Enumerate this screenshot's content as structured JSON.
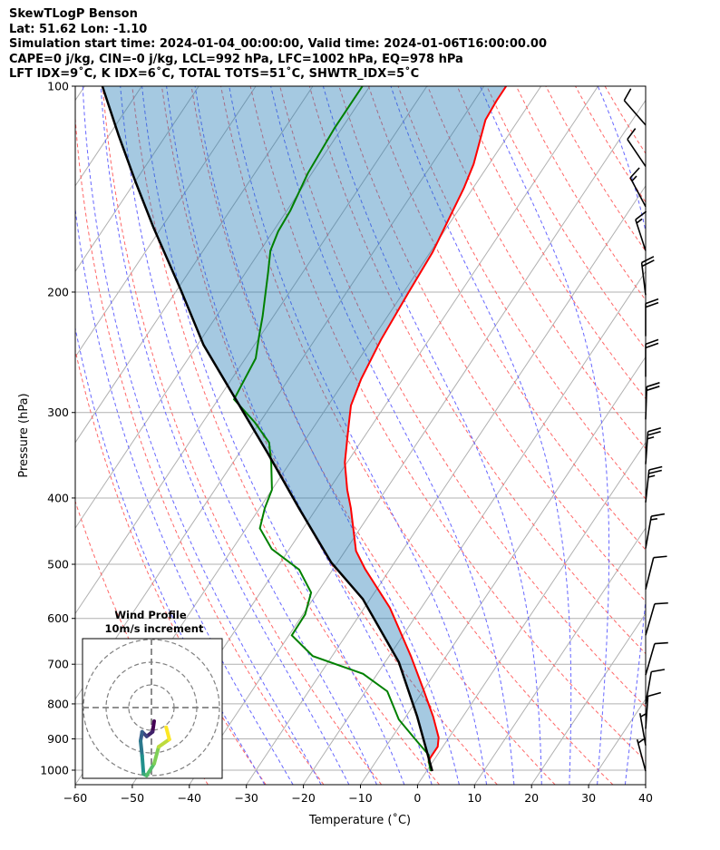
{
  "header": {
    "line1": "SkewTLogP Benson",
    "line2": "Lat: 51.62   Lon: -1.10",
    "line3": "Simulation start time: 2024-01-04_00:00:00, Valid time: 2024-01-06T16:00:00.00",
    "line4": "CAPE=0 j/kg, CIN=-0 j/kg, LCL=992 hPa, LFC=1002 hPa, EQ=978 hPa",
    "line5": "LFT IDX=9˚C, K IDX=6˚C, TOTAL TOTS=51˚C, SHWTR_IDX=5˚C"
  },
  "chart_data": {
    "type": "line",
    "xlabel": "Temperature (˚C)",
    "ylabel": "Pressure (hPa)",
    "xlim": [
      -60,
      40
    ],
    "ylim": [
      1050,
      100
    ],
    "xticks": [
      -60,
      -50,
      -40,
      -30,
      -20,
      -10,
      0,
      10,
      20,
      30,
      40
    ],
    "yticks": [
      100,
      200,
      300,
      400,
      500,
      600,
      700,
      800,
      900,
      1000
    ],
    "grid": true,
    "colors": {
      "temperature": "#ff0000",
      "dewpoint": "#008000",
      "parcel": "#000000",
      "cape_fill": "#1f77b4",
      "isotherm": "#b0b0b0",
      "dry_adiabat": "#ff6666",
      "moist_adiabat": "#6666ff"
    },
    "temperature": [
      [
        1003,
        1.0
      ],
      [
        973,
        -0.7
      ],
      [
        958,
        -0.9
      ],
      [
        924,
        -0.9
      ],
      [
        896,
        -1.8
      ],
      [
        835,
        -5.2
      ],
      [
        762,
        -10.1
      ],
      [
        681,
        -16.2
      ],
      [
        579,
        -25.5
      ],
      [
        508,
        -34.4
      ],
      [
        478,
        -38.1
      ],
      [
        414,
        -44.0
      ],
      [
        389,
        -46.8
      ],
      [
        355,
        -50.4
      ],
      [
        314,
        -54.0
      ],
      [
        293,
        -56.0
      ],
      [
        268,
        -57.3
      ],
      [
        235,
        -58.4
      ],
      [
        201,
        -59.1
      ],
      [
        175,
        -59.6
      ],
      [
        141,
        -61.6
      ],
      [
        130,
        -62.7
      ],
      [
        112,
        -65.8
      ],
      [
        105,
        -66.1
      ],
      [
        100,
        -66.1
      ]
    ],
    "dewpoint": [
      [
        1003,
        0.7
      ],
      [
        967,
        -0.9
      ],
      [
        950,
        -1.5
      ],
      [
        907,
        -5.2
      ],
      [
        843,
        -10.9
      ],
      [
        767,
        -16.2
      ],
      [
        723,
        -22.5
      ],
      [
        681,
        -33.4
      ],
      [
        635,
        -39.5
      ],
      [
        592,
        -39.6
      ],
      [
        550,
        -41.1
      ],
      [
        509,
        -45.9
      ],
      [
        475,
        -53.1
      ],
      [
        443,
        -57.6
      ],
      [
        414,
        -59.1
      ],
      [
        389,
        -60.0
      ],
      [
        355,
        -63.3
      ],
      [
        332,
        -66.0
      ],
      [
        310,
        -70.9
      ],
      [
        287,
        -77.2
      ],
      [
        268,
        -77.7
      ],
      [
        250,
        -78.2
      ],
      [
        232,
        -80.2
      ],
      [
        217,
        -81.9
      ],
      [
        187,
        -86.1
      ],
      [
        174,
        -88.2
      ],
      [
        163,
        -89.1
      ],
      [
        152,
        -89.4
      ],
      [
        134,
        -90.7
      ],
      [
        115,
        -91.3
      ],
      [
        100,
        -91.3
      ]
    ],
    "parcel": [
      [
        1003,
        1.0
      ],
      [
        835,
        -8.0
      ],
      [
        695,
        -17.6
      ],
      [
        562,
        -31.3
      ],
      [
        497,
        -41.1
      ],
      [
        414,
        -53.1
      ],
      [
        344,
        -65.0
      ],
      [
        287,
        -76.9
      ],
      [
        239,
        -88.9
      ],
      [
        199,
        -99.2
      ],
      [
        161,
        -111.4
      ],
      [
        138,
        -119.9
      ],
      [
        118,
        -128.3
      ],
      [
        100,
        -136.9
      ]
    ],
    "isotherms_c": [
      -160,
      -150,
      -140,
      -130,
      -120,
      -110,
      -100,
      -90,
      -80,
      -70,
      -60,
      -50,
      -40,
      -30,
      -20,
      -10,
      0,
      10,
      20,
      30,
      40
    ],
    "dry_adiabats_c_at_1000": [
      -40,
      -30,
      -20,
      -10,
      0,
      10,
      20,
      30,
      40,
      50,
      60,
      70,
      80,
      90,
      100,
      110,
      120,
      130,
      140,
      150,
      160
    ],
    "moist_adiabats_c_at_1000": [
      -30,
      -25,
      -20,
      -15,
      -10,
      -5,
      0,
      5,
      10,
      15,
      20,
      25,
      30,
      35,
      40
    ],
    "wind_barbs": [
      {
        "p": 114,
        "dir": 319,
        "speed": 10
      },
      {
        "p": 131,
        "dir": 326,
        "speed": 10
      },
      {
        "p": 150,
        "dir": 332,
        "speed": 15
      },
      {
        "p": 174,
        "dir": 342,
        "speed": 15
      },
      {
        "p": 202,
        "dir": 353,
        "speed": 20
      },
      {
        "p": 232,
        "dir": 0,
        "speed": 20
      },
      {
        "p": 266,
        "dir": 0,
        "speed": 20
      },
      {
        "p": 307,
        "dir": 2,
        "speed": 20
      },
      {
        "p": 357,
        "dir": 4,
        "speed": 25
      },
      {
        "p": 406,
        "dir": 6,
        "speed": 25
      },
      {
        "p": 474,
        "dir": 10,
        "speed": 15
      },
      {
        "p": 544,
        "dir": 14,
        "speed": 10
      },
      {
        "p": 635,
        "dir": 16,
        "speed": 10
      },
      {
        "p": 726,
        "dir": 16,
        "speed": 10
      },
      {
        "p": 800,
        "dir": 10,
        "speed": 10
      },
      {
        "p": 870,
        "dir": 4,
        "speed": 10
      },
      {
        "p": 920,
        "dir": 350,
        "speed": 5
      },
      {
        "p": 1003,
        "dir": 345,
        "speed": 5
      }
    ],
    "hodograph": {
      "title": "Wind Profile",
      "subtitle": "10m/s increment",
      "rings_ms": [
        10,
        20,
        30
      ],
      "u": [
        1.2,
        0.5,
        -2.1,
        -4.1,
        -4.8,
        -4.1,
        -3.5,
        -2.1,
        1.2,
        3.2,
        7.9,
        6.5
      ],
      "v": [
        -6,
        -10.7,
        -12.7,
        -10.7,
        -14.7,
        -21.3,
        -29.3,
        -30,
        -24.7,
        -17.3,
        -14,
        -8.7
      ],
      "colormap": [
        "#440154",
        "#3b528b",
        "#21918c",
        "#5ec962",
        "#fde725"
      ]
    }
  }
}
